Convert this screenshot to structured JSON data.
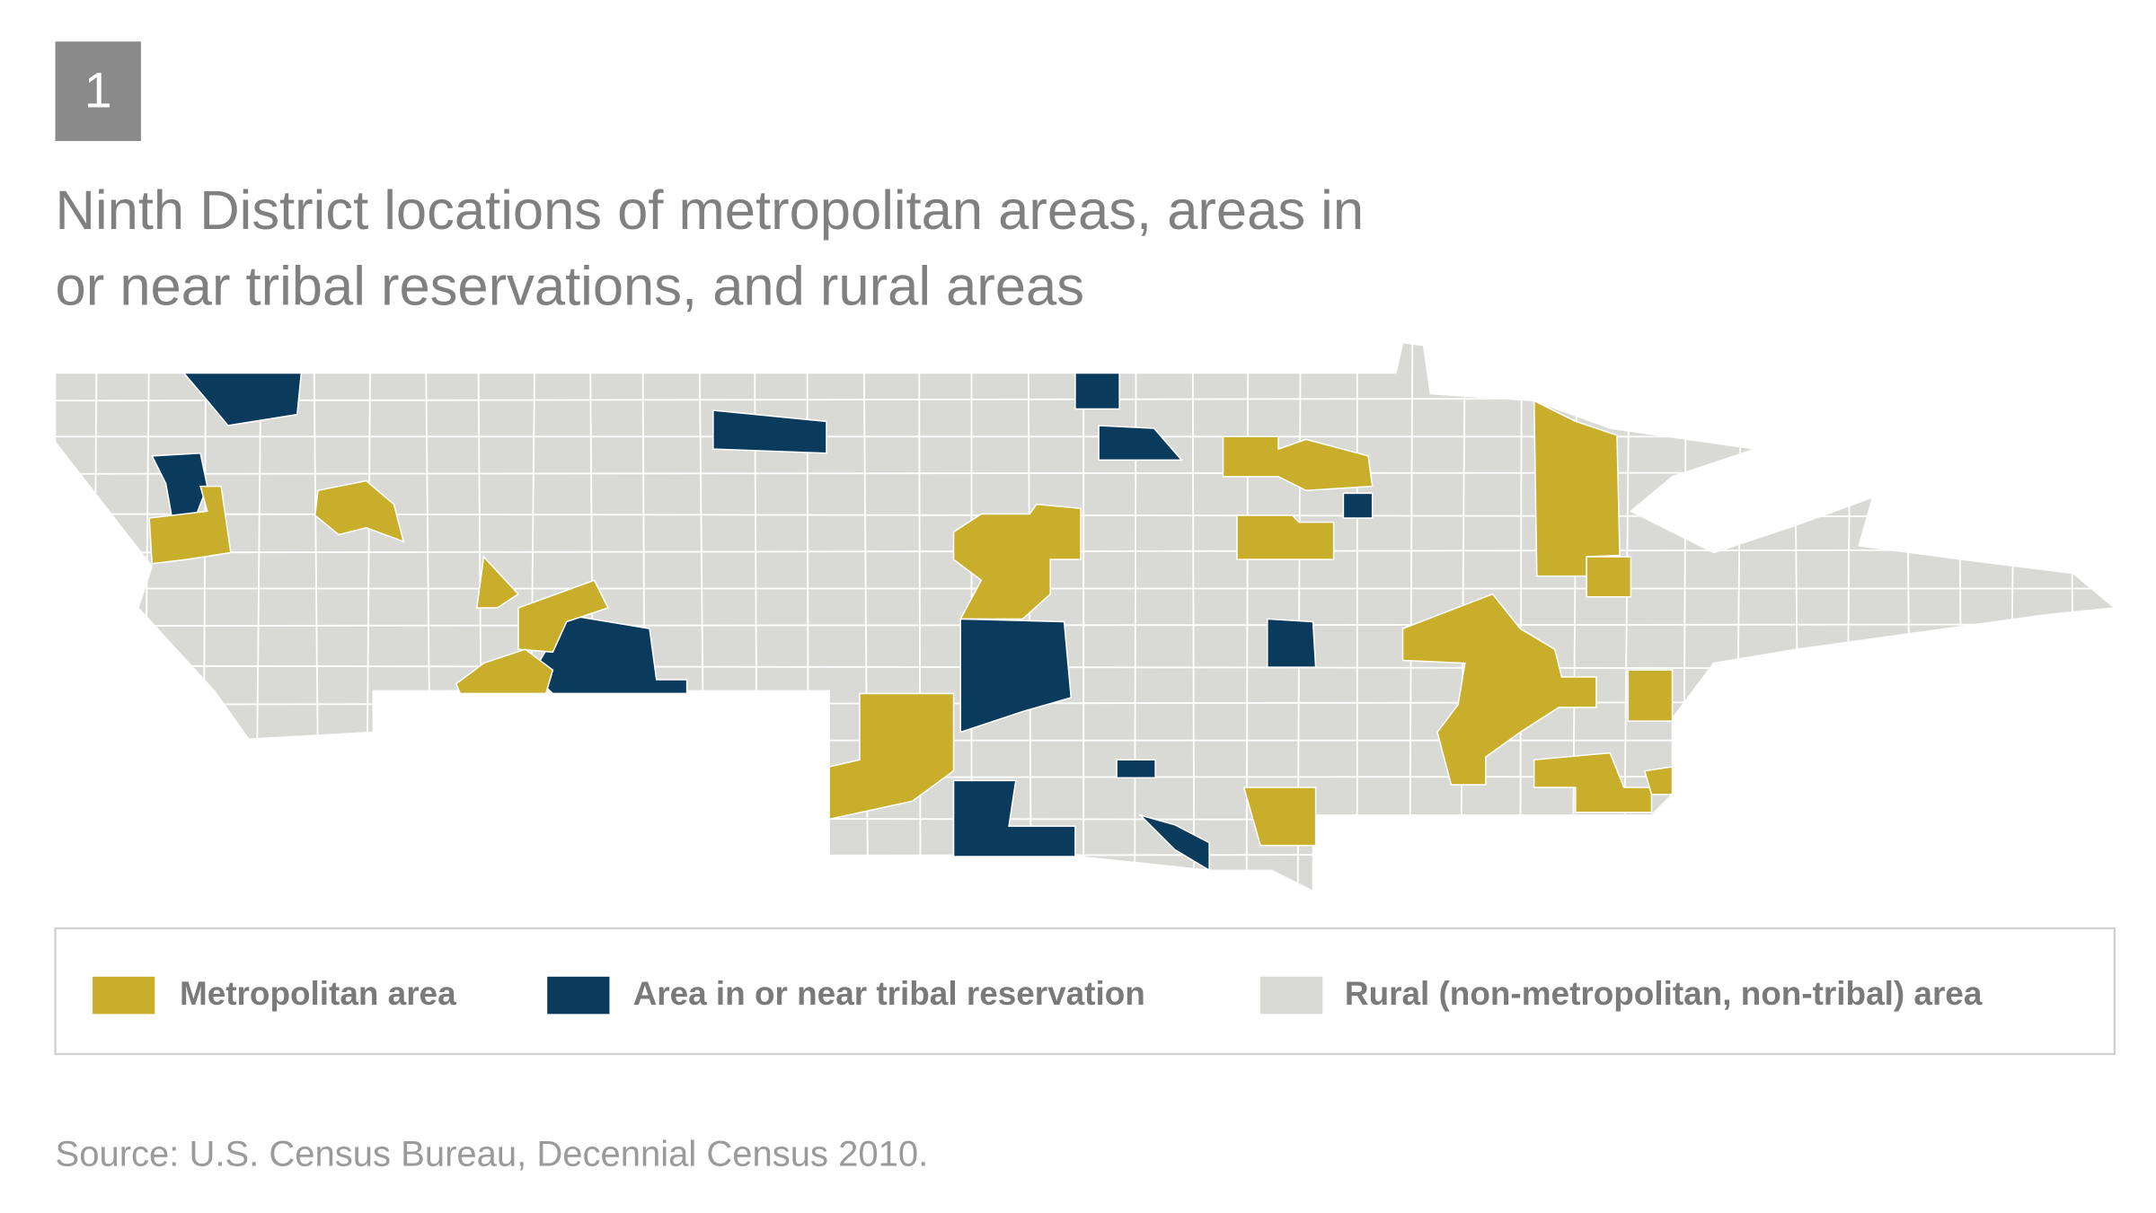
{
  "badge": "1",
  "title_lines": [
    "Ninth District locations of metropolitan areas, areas in",
    "or near tribal reservations, and rural areas"
  ],
  "legend": [
    {
      "label": "Metropolitan area",
      "color": "#c9ae2c"
    },
    {
      "label": "Area in or near tribal reservation",
      "color": "#0a3a5c"
    },
    {
      "label": "Rural (non-metropolitan, non-tribal) area",
      "color": "#d9d9d6"
    }
  ],
  "source": "Source: U.S. Census Bureau, Decennial Census 2010."
}
